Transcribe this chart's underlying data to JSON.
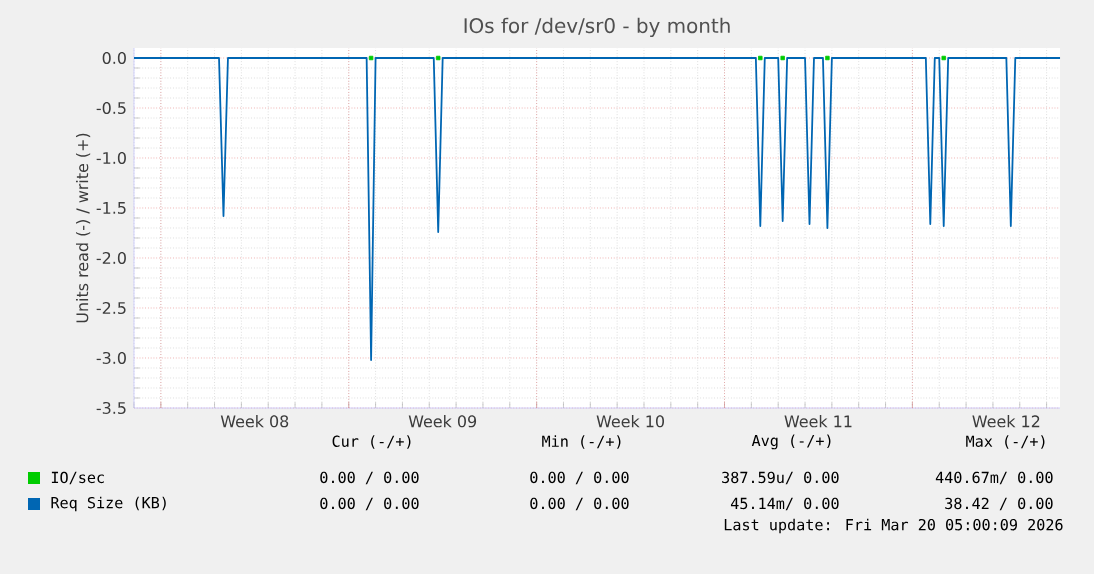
{
  "chart_data": {
    "type": "line",
    "title": "IOs for /dev/sr0 - by month",
    "ylabel": "Units read (-) / write (+)",
    "categories": [
      null,
      null,
      null,
      null,
      null,
      null,
      null,
      null,
      null,
      null,
      null,
      null,
      null,
      null,
      null,
      null,
      null,
      null,
      null,
      null,
      null,
      null,
      null,
      null,
      null,
      null,
      null,
      "Week 08",
      null,
      null,
      null,
      null,
      null,
      null,
      null,
      null,
      null,
      null,
      null,
      null,
      null,
      null,
      null,
      null,
      null,
      null,
      null,
      null,
      null,
      null,
      null,
      null,
      null,
      null,
      null,
      null,
      null,
      null,
      null,
      null,
      null,
      null,
      null,
      null,
      null,
      null,
      null,
      null,
      null,
      "Week 09",
      null,
      null,
      null,
      null,
      null,
      null,
      null,
      null,
      null,
      null,
      null,
      null,
      null,
      null,
      null,
      null,
      null,
      null,
      null,
      null,
      null,
      null,
      null,
      null,
      null,
      null,
      null,
      null,
      null,
      null,
      null,
      null,
      null,
      null,
      null,
      null,
      null,
      null,
      null,
      null,
      null,
      "Week 10",
      null,
      null,
      null,
      null,
      null,
      null,
      null,
      null,
      null,
      null,
      null,
      null,
      null,
      null,
      null,
      null,
      null,
      null,
      null,
      null,
      null,
      null,
      null,
      null,
      null,
      null,
      null,
      null,
      null,
      null,
      null,
      null,
      null,
      null,
      null,
      null,
      null,
      null,
      null,
      null,
      null,
      "Week 11",
      null,
      null,
      null,
      null,
      null,
      null,
      null,
      null,
      null,
      null,
      null,
      null,
      null,
      null,
      null,
      null,
      null,
      null,
      null,
      null,
      null,
      null,
      null,
      null,
      null,
      null,
      null,
      null,
      null,
      null,
      null,
      null,
      null,
      null,
      null,
      null,
      null,
      null,
      null,
      null,
      null,
      "Week 12",
      null,
      null,
      null,
      null,
      null,
      null,
      null,
      null,
      null,
      null,
      null,
      null
    ],
    "ylim": [
      -3.5,
      0.1
    ],
    "yticks": [
      {
        "value": 0,
        "label": "0.0"
      },
      -0.5,
      {
        "value": -1,
        "label": "-1.0"
      },
      -1.5,
      {
        "value": -2,
        "label": "-2.0"
      },
      -2.5,
      {
        "value": -3,
        "label": "-3.0"
      },
      -3.5
    ],
    "grid": true,
    "legend": "bottom",
    "series": [
      {
        "name": "IO/sec",
        "type": "scatter",
        "color": "#00cc00",
        "values": [
          null,
          null,
          null,
          null,
          null,
          null,
          null,
          null,
          null,
          null,
          null,
          null,
          null,
          null,
          null,
          null,
          null,
          null,
          null,
          null,
          null,
          null,
          null,
          null,
          null,
          null,
          null,
          null,
          null,
          null,
          null,
          null,
          null,
          null,
          null,
          null,
          null,
          null,
          null,
          null,
          null,
          null,
          null,
          null,
          null,
          null,
          null,
          null,
          null,
          null,
          null,
          null,
          null,
          0,
          null,
          null,
          null,
          null,
          null,
          null,
          null,
          null,
          null,
          null,
          null,
          null,
          null,
          null,
          0,
          null,
          null,
          null,
          null,
          null,
          null,
          null,
          null,
          null,
          null,
          null,
          null,
          null,
          null,
          null,
          null,
          null,
          null,
          null,
          null,
          null,
          null,
          null,
          null,
          null,
          null,
          null,
          null,
          null,
          null,
          null,
          null,
          null,
          null,
          null,
          null,
          null,
          null,
          null,
          null,
          null,
          null,
          null,
          null,
          null,
          null,
          null,
          null,
          null,
          null,
          null,
          null,
          null,
          null,
          null,
          null,
          null,
          null,
          null,
          null,
          null,
          null,
          null,
          null,
          null,
          null,
          null,
          null,
          null,
          null,
          null,
          0,
          null,
          null,
          null,
          null,
          0,
          null,
          null,
          null,
          null,
          null,
          null,
          null,
          null,
          null,
          0,
          null,
          null,
          null,
          null,
          null,
          null,
          null,
          null,
          null,
          null,
          null,
          null,
          null,
          null,
          null,
          null,
          null,
          null,
          null,
          null,
          null,
          null,
          null,
          null,
          null,
          0,
          null,
          null,
          null,
          null,
          null,
          null,
          null,
          null,
          null,
          null,
          null,
          null,
          null,
          null,
          null,
          null,
          null,
          null,
          null,
          null,
          null,
          null,
          null,
          null,
          null,
          null
        ]
      },
      {
        "name": "Req Size (KB)",
        "color": "#0066b3",
        "values": [
          0,
          0,
          0,
          0,
          0,
          0,
          0,
          0,
          0,
          0,
          0,
          0,
          0,
          0,
          0,
          0,
          0,
          0,
          0,
          0,
          -1.58,
          0,
          0,
          0,
          0,
          0,
          0,
          0,
          0,
          0,
          0,
          0,
          0,
          0,
          0,
          0,
          0,
          0,
          0,
          0,
          0,
          0,
          0,
          0,
          0,
          0,
          0,
          0,
          0,
          0,
          0,
          0,
          0,
          -3.02,
          0,
          0,
          0,
          0,
          0,
          0,
          0,
          0,
          0,
          0,
          0,
          0,
          0,
          0,
          -1.74,
          0,
          0,
          0,
          0,
          0,
          0,
          0,
          0,
          0,
          0,
          0,
          0,
          0,
          0,
          0,
          0,
          0,
          0,
          0,
          0,
          0,
          0,
          0,
          0,
          0,
          0,
          0,
          0,
          0,
          0,
          0,
          0,
          0,
          0,
          0,
          0,
          0,
          0,
          0,
          0,
          0,
          0,
          0,
          0,
          0,
          0,
          0,
          0,
          0,
          0,
          0,
          0,
          0,
          0,
          0,
          0,
          0,
          0,
          0,
          0,
          0,
          0,
          0,
          0,
          0,
          0,
          0,
          0,
          0,
          0,
          0,
          -1.68,
          0,
          0,
          0,
          0,
          -1.63,
          0,
          0,
          0,
          0,
          0,
          -1.66,
          0,
          0,
          0,
          -1.7,
          0,
          0,
          0,
          0,
          0,
          0,
          0,
          0,
          0,
          0,
          0,
          0,
          0,
          0,
          0,
          0,
          0,
          0,
          0,
          0,
          0,
          0,
          -1.66,
          0,
          0,
          -1.68,
          0,
          0,
          0,
          0,
          0,
          0,
          0,
          0,
          0,
          0,
          0,
          0,
          0,
          0,
          -1.68,
          0,
          0,
          0,
          0,
          0,
          0,
          0,
          0,
          0,
          0,
          0
        ]
      }
    ],
    "annotations": [
      "Cur (-/+)",
      "Min (-/+)",
      "Avg (-/+)",
      "Max (-/+)",
      "0.00 /  0.00",
      "0.00 /  0.00",
      "387.59u/  0.00",
      "440.67m/  0.00",
      "0.00 /  0.00",
      "0.00 /  0.00",
      "45.14m/  0.00",
      "38.42 /  0.00",
      "Last update: Fri Mar 20 05:00:09 2026"
    ]
  }
}
